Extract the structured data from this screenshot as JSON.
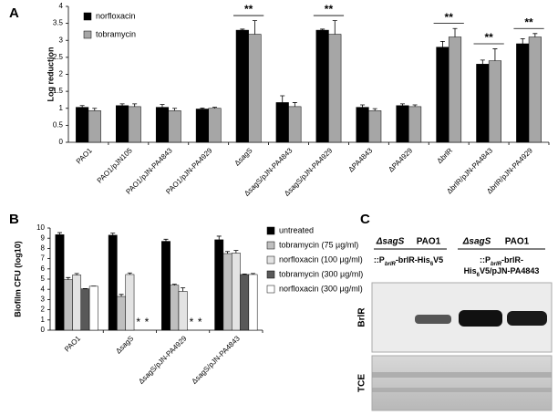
{
  "chart_data": [
    {
      "type": "bar",
      "label": "A",
      "ylabel": "Log reduction",
      "categories": [
        "PAO1",
        "PAO1/pJN105",
        "PAO1/pJN-PA4843",
        "PAO1/pJN-PA4929",
        "ΔsagS",
        "ΔsagS/pJN-PA4843",
        "ΔsagS/pJN-PA4929",
        "ΔPA4843",
        "ΔPA4929",
        "ΔbrlR",
        "ΔbrlR/pJN-PA4843",
        "ΔbrlR/pJN-PA4929"
      ],
      "series": [
        {
          "name": "norfloxacin",
          "color": "#000000",
          "values": [
            1.03,
            1.08,
            1.03,
            0.98,
            3.3,
            1.17,
            3.3,
            1.03,
            1.08,
            2.8,
            2.3,
            2.9
          ],
          "errors": [
            0.05,
            0.05,
            0.08,
            0.03,
            0.03,
            0.2,
            0.03,
            0.07,
            0.05,
            0.17,
            0.12,
            0.15
          ]
        },
        {
          "name": "tobramycin",
          "color": "#a6a6a6",
          "values": [
            0.93,
            1.05,
            0.93,
            1.0,
            3.18,
            1.05,
            3.18,
            0.93,
            1.05,
            3.1,
            2.4,
            3.1
          ],
          "errors": [
            0.07,
            0.08,
            0.07,
            0.03,
            0.4,
            0.12,
            0.4,
            0.06,
            0.05,
            0.25,
            0.35,
            0.1
          ]
        }
      ],
      "significance": [
        null,
        null,
        null,
        null,
        "**",
        null,
        "**",
        null,
        null,
        "**",
        "**",
        "**"
      ],
      "ylim": [
        0,
        4
      ],
      "yticks": [
        0,
        0.5,
        1,
        1.5,
        2,
        2.5,
        3,
        3.5,
        4
      ],
      "legend": "upper left"
    },
    {
      "type": "bar",
      "label": "B",
      "ylabel": "Biofilm CFU (log10)",
      "categories": [
        "PAO1",
        "ΔsagS",
        "ΔsagS/pJN-PA4929",
        "ΔsagS/pJN-PA4843"
      ],
      "series": [
        {
          "name": "untreated",
          "color": "#000000",
          "values": [
            9.35,
            9.3,
            8.7,
            8.85
          ],
          "errors": [
            0.2,
            0.2,
            0.2,
            0.35
          ]
        },
        {
          "name": "tobramycin (75 µg/ml)",
          "color": "#bfbfbf",
          "values": [
            4.95,
            3.3,
            4.4,
            7.5
          ],
          "errors": [
            0.2,
            0.2,
            0.1,
            0.2
          ]
        },
        {
          "name": "norfloxacin (100 µg/ml)",
          "color": "#e3e3e3",
          "values": [
            5.4,
            5.45,
            3.8,
            7.55
          ],
          "errors": [
            0.15,
            0.15,
            0.35,
            0.25
          ]
        },
        {
          "name": "tobramycin (300 µg/ml)",
          "color": "#595959",
          "values": [
            4.05,
            null,
            null,
            5.45
          ],
          "errors": [
            0.02,
            null,
            null,
            0.05
          ],
          "annotations": [
            null,
            "*",
            "*",
            null
          ]
        },
        {
          "name": "norfloxacin (300 µg/ml)",
          "color": "#ffffff",
          "values": [
            4.3,
            null,
            null,
            5.45
          ],
          "errors": [
            0.02,
            null,
            null,
            0.1
          ],
          "annotations": [
            null,
            "*",
            "*",
            null
          ]
        }
      ],
      "ylim": [
        0,
        10
      ],
      "yticks": [
        0,
        1,
        2,
        3,
        4,
        5,
        6,
        7,
        8,
        9,
        10
      ],
      "legend": "right"
    }
  ],
  "blot": {
    "label": "C",
    "strains": [
      "ΔsagS",
      "PAO1",
      "ΔsagS",
      "PAO1"
    ],
    "constructs": [
      [
        [
          "::P",
          "brlR",
          "-brlR-His",
          "6",
          "V5"
        ]
      ],
      [
        [
          "::P",
          "brlR",
          "-brlR-"
        ],
        [
          "His",
          "6",
          "V5/pJN-PA4843"
        ]
      ]
    ],
    "rows": [
      "BrlR",
      "TCE"
    ]
  }
}
